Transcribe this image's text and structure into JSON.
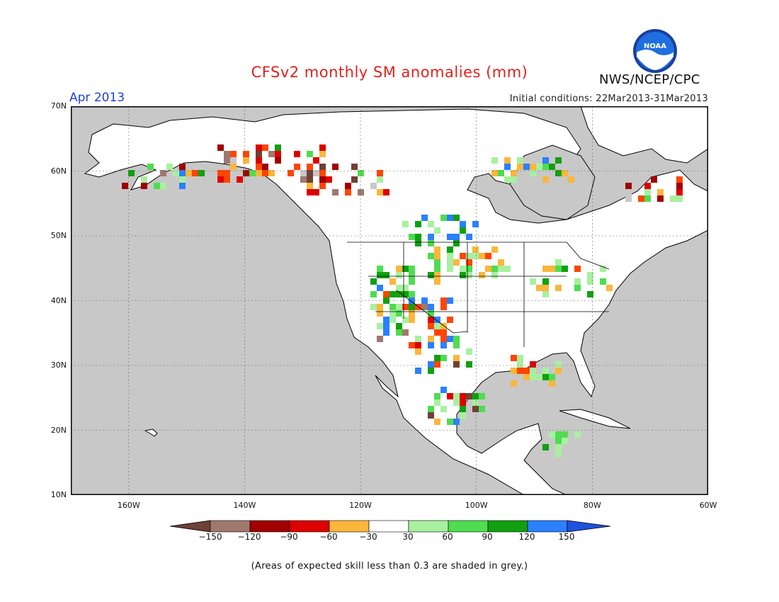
{
  "header": {
    "title": "CFSv2 monthly SM anomalies (mm)",
    "month": "Apr 2013",
    "initial_conditions": "Initial conditions: 22Mar2013-31Mar2013",
    "agency": "NWS/NCEP/CPC",
    "logo_text": "NOAA"
  },
  "map": {
    "lon_range": [
      -170,
      -60
    ],
    "lat_range": [
      10,
      70
    ],
    "lat_labels": [
      "70N",
      "60N",
      "50N",
      "40N",
      "30N",
      "20N",
      "10N"
    ],
    "lon_labels": [
      "160W",
      "140W",
      "120W",
      "100W",
      "80W",
      "60W"
    ],
    "colors": {
      "ocean": "#c8c8c8",
      "land": "#ffffff",
      "coast": "#000000"
    }
  },
  "legend": {
    "ticks": [
      "−150",
      "−120",
      "−90",
      "−60",
      "−30",
      "30",
      "60",
      "90",
      "120",
      "150"
    ],
    "colors": [
      "#6e4136",
      "#a0786e",
      "#a00000",
      "#dc0000",
      "#ff4500",
      "#fbb63c",
      "#ffffff",
      "#a8f0a0",
      "#50dc50",
      "#10a010",
      "#2a80ff",
      "#2050e0"
    ]
  },
  "footnote": "(Areas of expected skill less than 0.3 are shaded in grey.)"
}
